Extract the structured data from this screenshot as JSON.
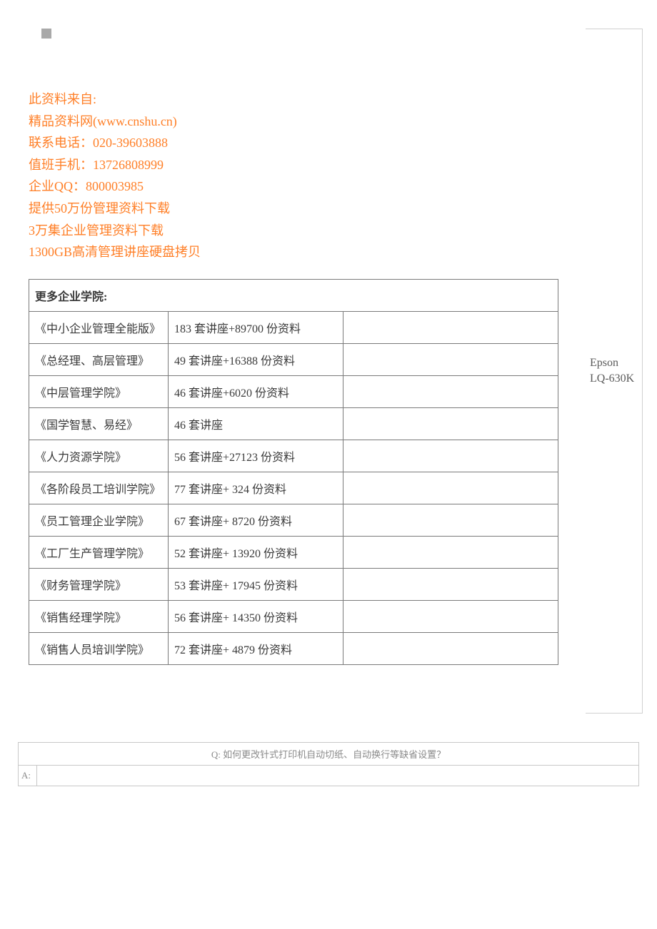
{
  "contact": {
    "line1": "此资料来自:",
    "line2": "精品资料网(www.cnshu.cn)",
    "line3": "联系电话：020-39603888",
    "line4": "值班手机：13726808999",
    "line5": "企业QQ：800003985",
    "line6": "提供50万份管理资料下载",
    "line7": "3万集企业管理资料下载",
    "line8": "1300GB高清管理讲座硬盘拷贝"
  },
  "table": {
    "header": "更多企业学院:",
    "rows": [
      {
        "c1": "《中小企业管理全能版》",
        "c2": "183 套讲座+89700 份资料",
        "c3": ""
      },
      {
        "c1": "《总经理、高层管理》",
        "c2": "49 套讲座+16388 份资料",
        "c3": ""
      },
      {
        "c1": "《中层管理学院》",
        "c2": "46 套讲座+6020 份资料",
        "c3": ""
      },
      {
        "c1": "《国学智慧、易经》",
        "c2": "46 套讲座",
        "c3": ""
      },
      {
        "c1": "《人力资源学院》",
        "c2": "56 套讲座+27123 份资料",
        "c3": ""
      },
      {
        "c1": "《各阶段员工培训学院》",
        "c2": "77 套讲座+ 324 份资料",
        "c3": ""
      },
      {
        "c1": "《员工管理企业学院》",
        "c2": "67 套讲座+ 8720 份资料",
        "c3": ""
      },
      {
        "c1": "《工厂生产管理学院》",
        "c2": "52 套讲座+ 13920 份资料",
        "c3": ""
      },
      {
        "c1": "《财务管理学院》",
        "c2": "53 套讲座+ 17945 份资料",
        "c3": ""
      },
      {
        "c1": "《销售经理学院》",
        "c2": "56 套讲座+ 14350 份资料",
        "c3": ""
      },
      {
        "c1": "《销售人员培训学院》",
        "c2": "72 套讲座+ 4879 份资料",
        "c3": ""
      }
    ]
  },
  "sidebar": {
    "text": "Epson LQ-630K"
  },
  "qa": {
    "question": "Q: 如何更改针式打印机自动切纸、自动换行等缺省设置？",
    "answer_label": "A:",
    "answer_content": ""
  },
  "colors": {
    "accent": "#ff7f27",
    "border": "#7a7a7a",
    "light_border": "#c8c8c8",
    "muted_text": "#8a8a8a",
    "body_text": "#3a3a3a",
    "marker": "#a9a9a9"
  }
}
